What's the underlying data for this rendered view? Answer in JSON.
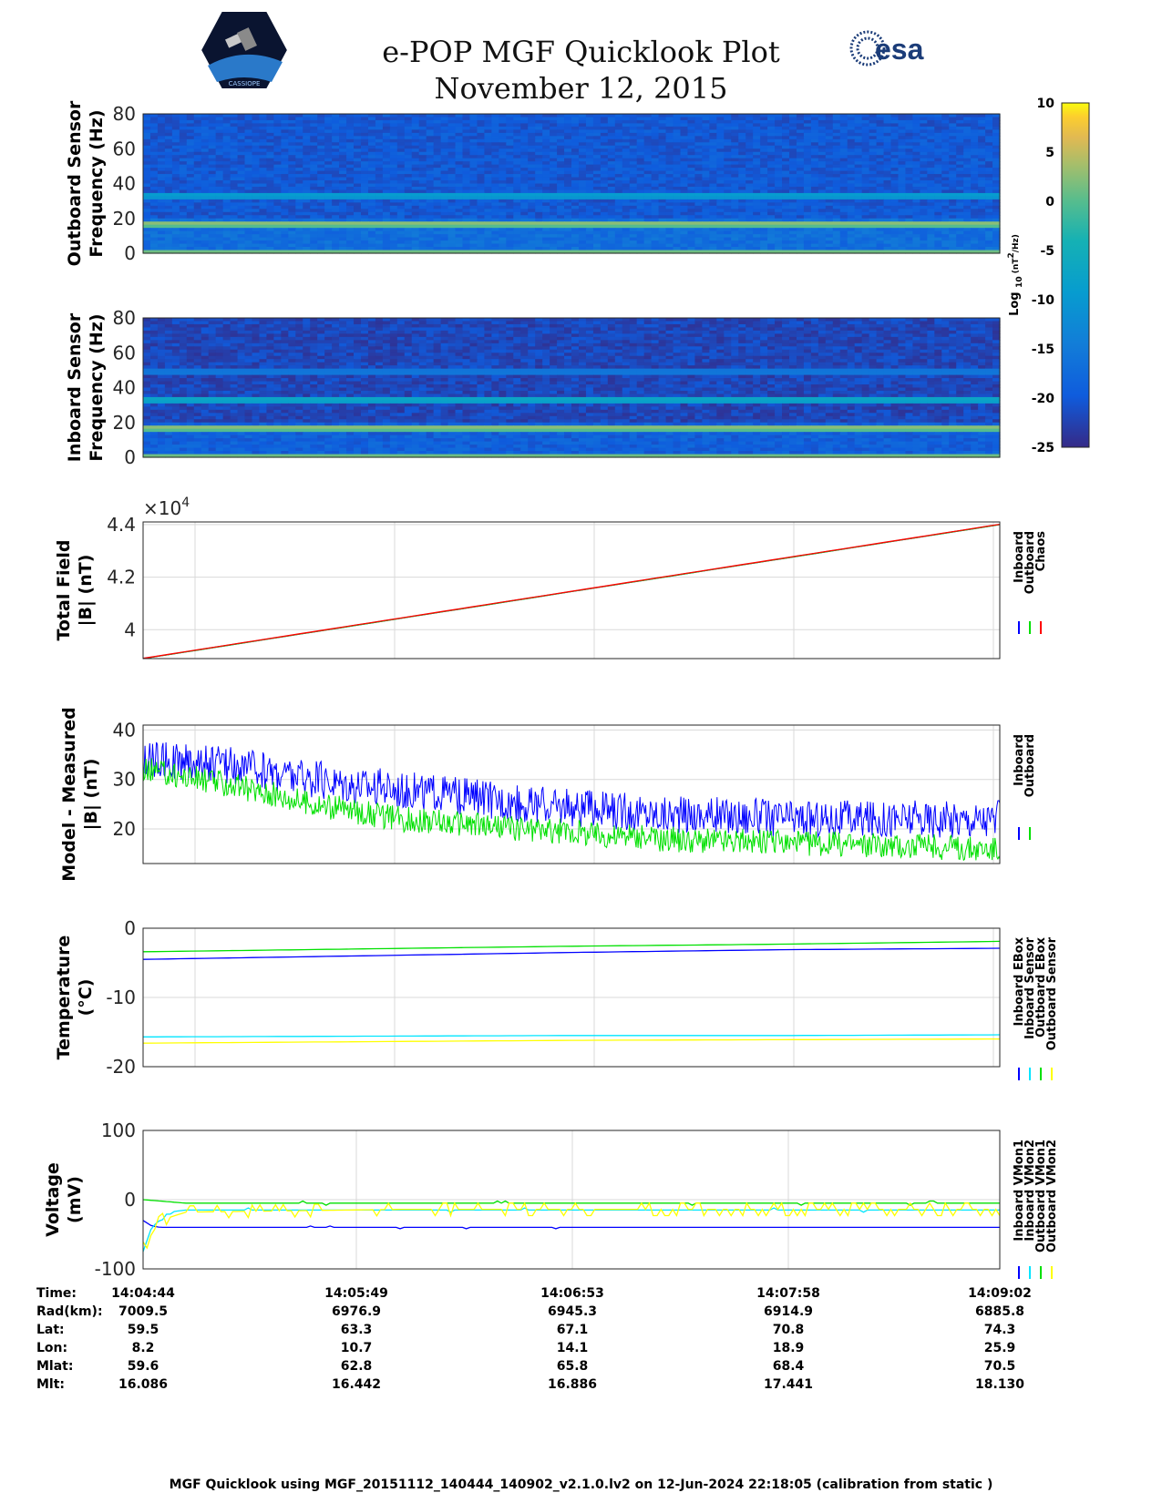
{
  "header": {
    "title": "e-POP MGF Quicklook Plot",
    "date": "November 12, 2015",
    "logo_left": "CASSIOPE",
    "logo_right": "esa"
  },
  "colors": {
    "inboard": "#0000ff",
    "outboard": "#00e000",
    "chaos": "#ff0000",
    "cyan": "#00e5ff",
    "yellow": "#ffff00",
    "grid": "#d9d9d9"
  },
  "chart_data": [
    {
      "type": "heatmap",
      "ylabel": [
        "Outboard Sensor",
        "Frequency (Hz)"
      ],
      "ylim": [
        0,
        80
      ],
      "yticks": [
        0,
        20,
        40,
        60,
        80
      ],
      "bands_hz": [
        {
          "f": 17,
          "level": 3
        },
        {
          "f": 33,
          "level": -8
        },
        {
          "f": 0.5,
          "level": 2
        }
      ],
      "background_level": -20
    },
    {
      "type": "heatmap",
      "ylabel": [
        "Inboard Sensor",
        "Frequency (Hz)"
      ],
      "ylim": [
        0,
        80
      ],
      "yticks": [
        0,
        20,
        40,
        60,
        80
      ],
      "bands_hz": [
        {
          "f": 17,
          "level": 3
        },
        {
          "f": 33,
          "level": -6
        },
        {
          "f": 49,
          "level": -14
        },
        {
          "f": 0.5,
          "level": 2
        }
      ],
      "background_level": -22
    },
    {
      "type": "colorbar",
      "label": "Log10 (nT2/Hz)",
      "label_main": "Log",
      "label_sub": "10",
      "label_unit_a": "(nT",
      "label_sup": "2",
      "label_unit_b": "/Hz)",
      "range": [
        -25,
        10
      ],
      "ticks": [
        10,
        5,
        0,
        -5,
        -10,
        -15,
        -20,
        -25
      ],
      "tick_labels": [
        "10",
        "5",
        "0",
        "-5",
        "-10",
        "-15",
        "-20",
        "-25"
      ]
    },
    {
      "type": "line",
      "ylabel": [
        "Total Field",
        "|B| (nT)"
      ],
      "exponent_label": "×10",
      "exponent_sup": "4",
      "ylim": [
        3.89,
        4.41
      ],
      "yticks": [
        4,
        4.2,
        4.4
      ],
      "ytick_labels": [
        "4",
        "4.2",
        "4.4"
      ],
      "series": [
        {
          "name": "Inboard",
          "x": [
            0,
            1
          ],
          "values": [
            3.89,
            4.4
          ]
        },
        {
          "name": "Outboard",
          "x": [
            0,
            1
          ],
          "values": [
            3.89,
            4.4
          ]
        },
        {
          "name": "Chaos",
          "x": [
            0,
            1
          ],
          "values": [
            3.891,
            4.401
          ]
        }
      ],
      "legend": "right"
    },
    {
      "type": "line",
      "ylabel": [
        "Model - Measured",
        "|B| (nT)"
      ],
      "ylim": [
        13,
        41
      ],
      "yticks": [
        20,
        30,
        40
      ],
      "series": [
        {
          "name": "Inboard",
          "x": [
            0,
            0.1,
            0.2,
            0.3,
            0.45,
            0.6,
            0.8,
            1.0
          ],
          "values": [
            34,
            33,
            30,
            28,
            25,
            23,
            22,
            22
          ]
        },
        {
          "name": "Outboard",
          "x": [
            0,
            0.1,
            0.2,
            0.3,
            0.45,
            0.6,
            0.8,
            1.0
          ],
          "values": [
            32,
            29,
            25,
            22,
            20,
            18,
            17,
            16
          ]
        }
      ],
      "legend": "right"
    },
    {
      "type": "line",
      "ylabel": [
        "Temperature",
        "(°C)"
      ],
      "ylim": [
        -20,
        0
      ],
      "yticks": [
        0,
        -10,
        -20
      ],
      "series": [
        {
          "name": "Inboard EBox",
          "x": [
            0,
            0.25,
            0.5,
            0.75,
            1.0
          ],
          "values": [
            -4.5,
            -4.0,
            -3.5,
            -3.1,
            -2.9
          ]
        },
        {
          "name": "Inboard Sensor",
          "x": [
            0,
            0.25,
            0.5,
            0.75,
            1.0
          ],
          "values": [
            -15.7,
            -15.6,
            -15.5,
            -15.5,
            -15.4
          ]
        },
        {
          "name": "Outboard EBox",
          "x": [
            0,
            0.25,
            0.5,
            0.75,
            1.0
          ],
          "values": [
            -3.4,
            -3.0,
            -2.6,
            -2.3,
            -1.9
          ]
        },
        {
          "name": "Outboard Sensor",
          "x": [
            0,
            0.25,
            0.5,
            0.75,
            1.0
          ],
          "values": [
            -16.6,
            -16.4,
            -16.2,
            -16.1,
            -16.0
          ]
        }
      ],
      "legend": "right"
    },
    {
      "type": "line",
      "ylabel": [
        "Voltage",
        "(mV)"
      ],
      "ylim": [
        -100,
        100
      ],
      "yticks": [
        100,
        0,
        -100
      ],
      "series": [
        {
          "name": "Inboard VMon1",
          "x": [
            0,
            0.01,
            0.02,
            0.1,
            1.0
          ],
          "values": [
            -30,
            -38,
            -40,
            -40,
            -40
          ]
        },
        {
          "name": "Inboard VMon2",
          "x": [
            0,
            0.01,
            0.03,
            0.05,
            1.0
          ],
          "values": [
            -75,
            -40,
            -18,
            -15,
            -15
          ]
        },
        {
          "name": "Outboard VMon1",
          "x": [
            0,
            0.02,
            0.05,
            0.2,
            1.0
          ],
          "values": [
            0,
            -2,
            -5,
            -5,
            -5
          ]
        },
        {
          "name": "Outboard VMon2",
          "x": [
            0,
            0.02,
            0.05,
            0.3,
            1.0
          ],
          "values": [
            -70,
            -30,
            -18,
            -14,
            -14
          ]
        }
      ],
      "legend": "right"
    }
  ],
  "time_table": {
    "row_labels": [
      "Time:",
      "Rad(km):",
      "Lat:",
      "Lon:",
      "Mlat:",
      "Mlt:"
    ],
    "columns": [
      {
        "Time": "14:04:44",
        "Rad": "7009.5",
        "Lat": "59.5",
        "Lon": "8.2",
        "Mlat": "59.6",
        "Mlt": "16.086"
      },
      {
        "Time": "14:05:49",
        "Rad": "6976.9",
        "Lat": "63.3",
        "Lon": "10.7",
        "Mlat": "62.8",
        "Mlt": "16.442"
      },
      {
        "Time": "14:06:53",
        "Rad": "6945.3",
        "Lat": "67.1",
        "Lon": "14.1",
        "Mlat": "65.8",
        "Mlt": "16.886"
      },
      {
        "Time": "14:07:58",
        "Rad": "6914.9",
        "Lat": "70.8",
        "Lon": "18.9",
        "Mlat": "68.4",
        "Mlt": "17.441"
      },
      {
        "Time": "14:09:02",
        "Rad": "6885.8",
        "Lat": "74.3",
        "Lon": "25.9",
        "Mlat": "70.5",
        "Mlt": "18.130"
      }
    ]
  },
  "footer": "MGF Quicklook using MGF_20151112_140444_140902_v2.1.0.lv2 on 12-Jun-2024 22:18:05 (calibration from static )"
}
